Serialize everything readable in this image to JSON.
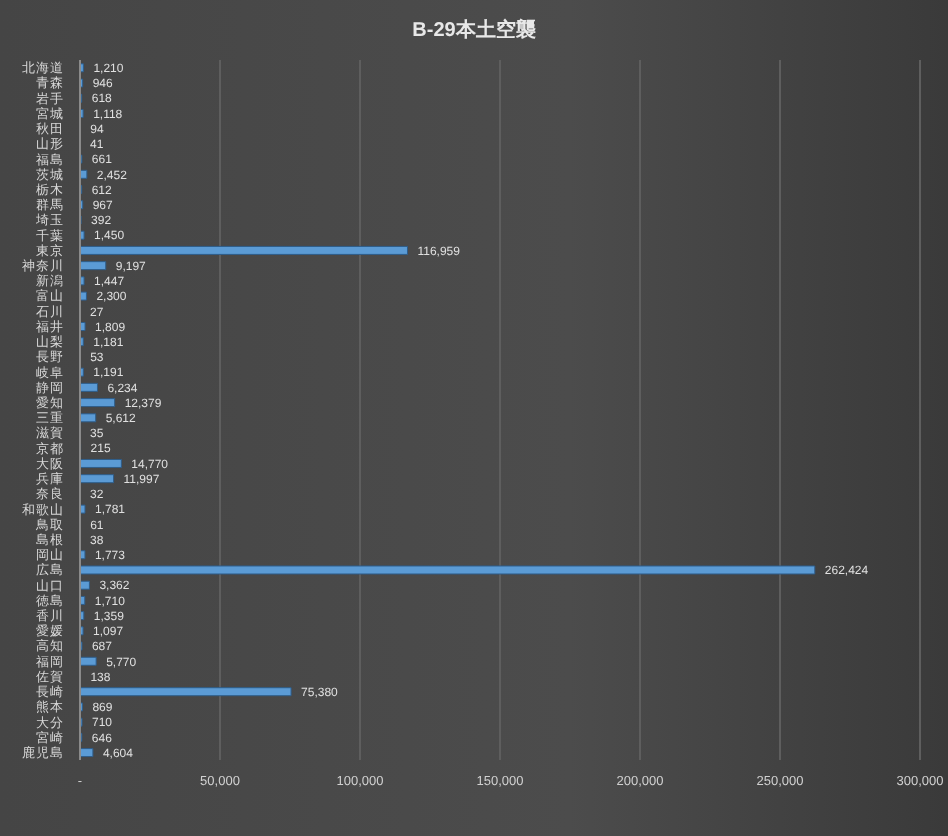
{
  "chart_data": {
    "type": "bar",
    "title": "B-29本土空襲",
    "orientation": "horizontal",
    "categories": [
      "北海道",
      "青森",
      "岩手",
      "宮城",
      "秋田",
      "山形",
      "福島",
      "茨城",
      "栃木",
      "群馬",
      "埼玉",
      "千葉",
      "東京",
      "神奈川",
      "新潟",
      "富山",
      "石川",
      "福井",
      "山梨",
      "長野",
      "岐阜",
      "静岡",
      "愛知",
      "三重",
      "滋賀",
      "京都",
      "大阪",
      "兵庫",
      "奈良",
      "和歌山",
      "鳥取",
      "島根",
      "岡山",
      "広島",
      "山口",
      "徳島",
      "香川",
      "愛媛",
      "高知",
      "福岡",
      "佐賀",
      "長崎",
      "熊本",
      "大分",
      "宮崎",
      "鹿児島"
    ],
    "values": [
      1210,
      946,
      618,
      1118,
      94,
      41,
      661,
      2452,
      612,
      967,
      392,
      1450,
      116959,
      9197,
      1447,
      2300,
      27,
      1809,
      1181,
      53,
      1191,
      6234,
      12379,
      5612,
      35,
      215,
      14770,
      11997,
      32,
      1781,
      61,
      38,
      1773,
      262424,
      3362,
      1710,
      1359,
      1097,
      687,
      5770,
      138,
      75380,
      869,
      710,
      646,
      4604
    ],
    "value_labels": [
      "1,210",
      "946",
      "618",
      "1,118",
      "94",
      "41",
      "661",
      "2,452",
      "612",
      "967",
      "392",
      "1,450",
      "116,959",
      "9,197",
      "1,447",
      "2,300",
      "27",
      "1,809",
      "1,181",
      "53",
      "1,191",
      "6,234",
      "12,379",
      "5,612",
      "35",
      "215",
      "14,770",
      "11,997",
      "32",
      "1,781",
      "61",
      "38",
      "1,773",
      "262,424",
      "3,362",
      "1,710",
      "1,359",
      "1,097",
      "687",
      "5,770",
      "138",
      "75,380",
      "869",
      "710",
      "646",
      "4,604"
    ],
    "color": "#5b9bd5",
    "xlim": [
      0,
      300000
    ],
    "xticks": [
      {
        "value": 0,
        "label": "-"
      },
      {
        "value": 50000,
        "label": "50,000"
      },
      {
        "value": 100000,
        "label": "100,000"
      },
      {
        "value": 150000,
        "label": "150,000"
      },
      {
        "value": 200000,
        "label": "200,000"
      },
      {
        "value": 250000,
        "label": "250,000"
      },
      {
        "value": 300000,
        "label": "300,000"
      }
    ],
    "grid": "x",
    "legend": false
  }
}
